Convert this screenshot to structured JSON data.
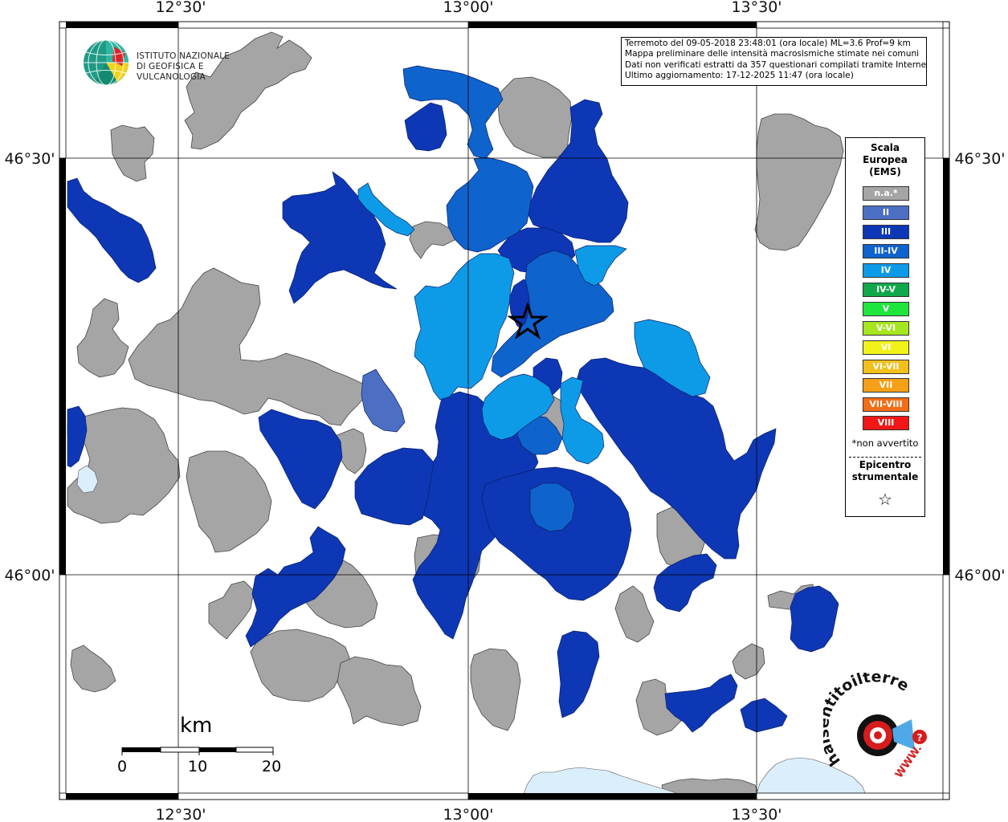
{
  "map": {
    "top_labels": [
      "12°30'",
      "13°00'",
      "13°30'"
    ],
    "bottom_labels": [
      "12°30'",
      "13°00'",
      "13°30'"
    ],
    "left_labels": [
      "46°30'",
      "46°00'"
    ],
    "right_labels": [
      "46°30'",
      "46°00'"
    ],
    "colors": {
      "na": "#a5a5a5",
      "II": "#4d6fc3",
      "III": "#0d37b4",
      "III-IV": "#0f63cc",
      "IV": "#0d9be8",
      "water": "#dbeefb"
    }
  },
  "info": {
    "line1": "Terremoto del 09-05-2018 23:48:01 (ora locale) ML=3.6 Prof=9 km",
    "line2": "Mappa preliminare delle intensità macrosismiche stimate nei comuni",
    "line3": "Dati non verificati estratti da 357 questionari compilati tramite Internet.",
    "line4": "Ultimo aggiornamento: 17-12-2025 11:47 (ora locale)"
  },
  "logo": {
    "line1": "ISTITUTO NAZIONALE",
    "line2": "DI GEOFISICA E VULCANOLOGIA"
  },
  "legend": {
    "title1": "Scala",
    "title2": "Europea",
    "title3": "(EMS)",
    "items": [
      {
        "label": "n.a.*",
        "color": "#a5a5a5"
      },
      {
        "label": "II",
        "color": "#4d6fc3"
      },
      {
        "label": "III",
        "color": "#0d37b4"
      },
      {
        "label": "III-IV",
        "color": "#0f63cc"
      },
      {
        "label": "IV",
        "color": "#0d9be8"
      },
      {
        "label": "IV-V",
        "color": "#11a84b"
      },
      {
        "label": "V",
        "color": "#1ee63c"
      },
      {
        "label": "V-VI",
        "color": "#a6e61e"
      },
      {
        "label": "VI",
        "color": "#f2f21b"
      },
      {
        "label": "VI-VII",
        "color": "#f2c01b"
      },
      {
        "label": "VII",
        "color": "#f5a016"
      },
      {
        "label": "VII-VIII",
        "color": "#f26e16"
      },
      {
        "label": "VIII",
        "color": "#f21616"
      }
    ],
    "na_note": "*non avvertito",
    "epi1": "Epicentro",
    "epi2": "strumentale",
    "star": "☆"
  },
  "scalebar": {
    "unit": "km",
    "ticks": [
      "0",
      "10",
      "20"
    ]
  },
  "logo2": {
    "text": "haisentitoilterremoto.it",
    "www": "WWW."
  }
}
